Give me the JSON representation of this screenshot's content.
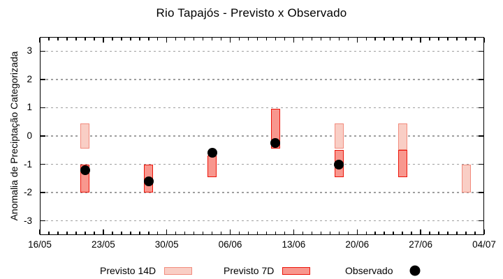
{
  "title": "Rio Tapajós - Previsto x Observado",
  "axes": {
    "ylabel": "Anomalia de Preciptação Categorizada"
  },
  "legend": {
    "previsto14": "Previsto 14D",
    "previsto7": "Previsto 7D",
    "observado": "Observado"
  },
  "colors": {
    "bar14_fill": "#f9cec5",
    "bar14_border": "#f28b7d",
    "bar7_fill": "#f8978e",
    "bar7_border": "#ec1409",
    "observed": "#000000",
    "grid": "#9e9e9e",
    "axis": "#000000"
  },
  "chart_data": {
    "type": "bar",
    "title": "Rio Tapajós - Previsto x Observado",
    "ylabel": "Anomalia de Preciptação Categorizada",
    "xlabel": "",
    "ylim": [
      -3.5,
      3.5
    ],
    "yticks": [
      3,
      2,
      1,
      0,
      -1,
      -2,
      -3
    ],
    "grid": "horizontal dotted",
    "legend_position": "below",
    "x_axis": {
      "span_days": 49,
      "major_tick_every_days": 7,
      "minor_tick_every_days": 1,
      "tick_labels": [
        {
          "label": "16/05",
          "day": 0
        },
        {
          "label": "23/05",
          "day": 7
        },
        {
          "label": "30/05",
          "day": 14
        },
        {
          "label": "06/06",
          "day": 21
        },
        {
          "label": "13/06",
          "day": 28
        },
        {
          "label": "20/06",
          "day": 35
        },
        {
          "label": "27/06",
          "day": 42
        },
        {
          "label": "04/07",
          "day": 49
        }
      ]
    },
    "series": [
      {
        "name": "Previsto 14D",
        "style": "range-bar",
        "bar_width_days": 1,
        "points": [
          {
            "date": "21/05",
            "day": 5,
            "high": 0.45,
            "low": -0.45
          },
          {
            "date": "18/06",
            "day": 33,
            "high": 0.45,
            "low": -0.45
          },
          {
            "date": "25/06",
            "day": 40,
            "high": 0.45,
            "low": -0.5
          },
          {
            "date": "02/07",
            "day": 47,
            "high": -1.0,
            "low": -2.0
          }
        ]
      },
      {
        "name": "Previsto 7D",
        "style": "range-bar",
        "bar_width_days": 1,
        "points": [
          {
            "date": "21/05",
            "day": 5,
            "high": -1.0,
            "low": -2.0
          },
          {
            "date": "28/05",
            "day": 12,
            "high": -1.0,
            "low": -2.0
          },
          {
            "date": "04/06",
            "day": 19,
            "high": -0.7,
            "low": -1.45
          },
          {
            "date": "11/06",
            "day": 26,
            "high": 0.95,
            "low": -0.45
          },
          {
            "date": "18/06",
            "day": 33,
            "high": -0.5,
            "low": -1.45
          },
          {
            "date": "25/06",
            "day": 40,
            "high": -0.5,
            "low": -1.45
          }
        ]
      },
      {
        "name": "Observado",
        "style": "scatter-dot",
        "marker": "filled-circle",
        "points": [
          {
            "date": "21/05",
            "day": 5,
            "value": -1.2
          },
          {
            "date": "28/05",
            "day": 12,
            "value": -1.6
          },
          {
            "date": "04/06",
            "day": 19,
            "value": -0.6
          },
          {
            "date": "11/06",
            "day": 26,
            "value": -0.25
          },
          {
            "date": "18/06",
            "day": 33,
            "value": -1.0
          }
        ]
      }
    ]
  }
}
